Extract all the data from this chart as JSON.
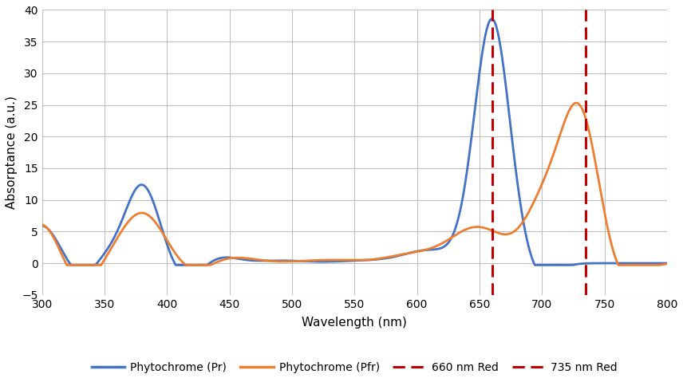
{
  "xlabel": "Wavelength (nm)",
  "ylabel": "Absorptance (a.u.)",
  "xlim": [
    300,
    800
  ],
  "ylim": [
    -5.0,
    40.0
  ],
  "yticks": [
    -5.0,
    0.0,
    5.0,
    10.0,
    15.0,
    20.0,
    25.0,
    30.0,
    35.0,
    40.0
  ],
  "xticks": [
    300,
    350,
    400,
    450,
    500,
    550,
    600,
    650,
    700,
    750,
    800
  ],
  "pr_color": "#4472C4",
  "pfr_color": "#ED7D31",
  "red_color": "#C00000",
  "line_660": 660,
  "line_735": 735,
  "background_color": "#ffffff",
  "grid_color": "#bfbfbf",
  "pr_gaussians": [
    {
      "mu": 300,
      "sigma": 15,
      "amp": 6.2
    },
    {
      "mu": 330,
      "sigma": 14,
      "amp": -2.5
    },
    {
      "mu": 350,
      "sigma": 10,
      "amp": 1.2
    },
    {
      "mu": 380,
      "sigma": 14,
      "amp": 12.5
    },
    {
      "mu": 415,
      "sigma": 14,
      "amp": -2.8
    },
    {
      "mu": 440,
      "sigma": 15,
      "amp": 1.2
    },
    {
      "mu": 490,
      "sigma": 20,
      "amp": 0.4
    },
    {
      "mu": 560,
      "sigma": 25,
      "amp": 0.4
    },
    {
      "mu": 610,
      "sigma": 20,
      "amp": 2.0
    },
    {
      "mu": 660,
      "sigma": 14,
      "amp": 38.5
    },
    {
      "mu": 700,
      "sigma": 12,
      "amp": -2.5
    }
  ],
  "pfr_gaussians": [
    {
      "mu": 300,
      "sigma": 15,
      "amp": 6.5
    },
    {
      "mu": 330,
      "sigma": 14,
      "amp": -4.0
    },
    {
      "mu": 380,
      "sigma": 18,
      "amp": 8.0
    },
    {
      "mu": 420,
      "sigma": 15,
      "amp": -1.8
    },
    {
      "mu": 450,
      "sigma": 20,
      "amp": 1.0
    },
    {
      "mu": 530,
      "sigma": 25,
      "amp": 0.5
    },
    {
      "mu": 600,
      "sigma": 22,
      "amp": 1.5
    },
    {
      "mu": 640,
      "sigma": 18,
      "amp": 3.5
    },
    {
      "mu": 660,
      "sigma": 18,
      "amp": 3.0
    },
    {
      "mu": 700,
      "sigma": 15,
      "amp": 8.0
    },
    {
      "mu": 730,
      "sigma": 16,
      "amp": 24.5
    },
    {
      "mu": 760,
      "sigma": 15,
      "amp": -4.0
    }
  ]
}
